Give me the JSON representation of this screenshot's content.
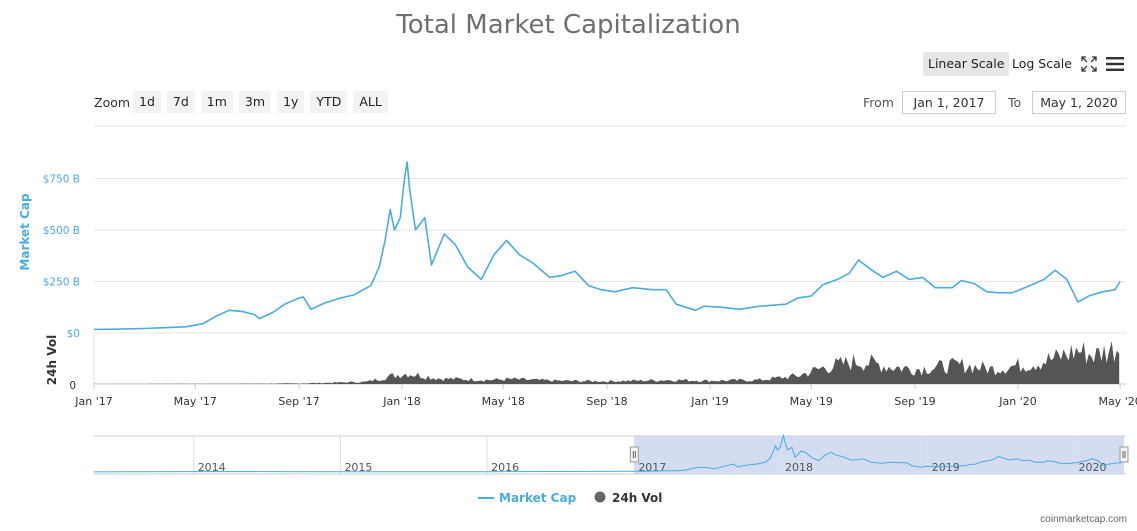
{
  "title": "Total Market Capitalization",
  "toolbar": {
    "linear_label": "Linear Scale",
    "log_label": "Log Scale",
    "fullscreen_icon": "fullscreen-icon",
    "menu_icon": "hamburger-menu-icon"
  },
  "zoom": {
    "label": "Zoom",
    "buttons": [
      "1d",
      "7d",
      "1m",
      "3m",
      "1y",
      "YTD",
      "ALL"
    ]
  },
  "range": {
    "from_label": "From",
    "from_value": "Jan 1, 2017",
    "to_label": "To",
    "to_value": "May 1, 2020"
  },
  "legend": {
    "market_cap": "Market Cap",
    "vol": "24h Vol"
  },
  "credit": "coinmarketcap.com",
  "colors": {
    "market_cap": "#4aace0",
    "volume": "#555555",
    "navigator_fill": "#ccd6f0"
  },
  "chart_data": {
    "type": "line",
    "ylabel": "Market Cap",
    "y2label": "24h Vol",
    "y_ticks": [
      "$0",
      "$250 B",
      "$500 B",
      "$750 B"
    ],
    "y2_ticks": [
      "0"
    ],
    "ylim": [
      0,
      950
    ],
    "x_tick_labels": [
      "Jan '17",
      "May '17",
      "Sep '17",
      "Jan '18",
      "May '18",
      "Sep '18",
      "Jan '19",
      "May '19",
      "Sep '19",
      "Jan '20",
      "May '20"
    ],
    "x_tick_dates": [
      "2017-01-01",
      "2017-05-01",
      "2017-09-01",
      "2018-01-01",
      "2018-05-01",
      "2018-09-01",
      "2019-01-01",
      "2019-05-01",
      "2019-09-01",
      "2020-01-01",
      "2020-05-01"
    ],
    "navigator_labels": [
      "2014",
      "2015",
      "2016",
      "2017",
      "2018",
      "2019",
      "2020"
    ],
    "series": [
      {
        "name": "Market Cap",
        "unit": "billion USD",
        "points": [
          [
            "2017-01-01",
            17
          ],
          [
            "2017-02-01",
            19
          ],
          [
            "2017-03-01",
            22
          ],
          [
            "2017-04-01",
            27
          ],
          [
            "2017-04-20",
            30
          ],
          [
            "2017-05-10",
            45
          ],
          [
            "2017-05-25",
            80
          ],
          [
            "2017-06-10",
            110
          ],
          [
            "2017-06-25",
            105
          ],
          [
            "2017-07-10",
            90
          ],
          [
            "2017-07-16",
            70
          ],
          [
            "2017-08-01",
            100
          ],
          [
            "2017-08-15",
            140
          ],
          [
            "2017-09-01",
            170
          ],
          [
            "2017-09-06",
            175
          ],
          [
            "2017-09-15",
            115
          ],
          [
            "2017-10-01",
            145
          ],
          [
            "2017-10-20",
            170
          ],
          [
            "2017-11-05",
            185
          ],
          [
            "2017-11-25",
            230
          ],
          [
            "2017-12-05",
            320
          ],
          [
            "2017-12-12",
            450
          ],
          [
            "2017-12-18",
            600
          ],
          [
            "2017-12-23",
            500
          ],
          [
            "2017-12-30",
            560
          ],
          [
            "2018-01-04",
            750
          ],
          [
            "2018-01-07",
            830
          ],
          [
            "2018-01-10",
            700
          ],
          [
            "2018-01-17",
            500
          ],
          [
            "2018-01-28",
            560
          ],
          [
            "2018-02-05",
            330
          ],
          [
            "2018-02-20",
            480
          ],
          [
            "2018-03-05",
            430
          ],
          [
            "2018-03-20",
            320
          ],
          [
            "2018-04-05",
            260
          ],
          [
            "2018-04-20",
            380
          ],
          [
            "2018-05-05",
            450
          ],
          [
            "2018-05-20",
            380
          ],
          [
            "2018-06-05",
            340
          ],
          [
            "2018-06-25",
            270
          ],
          [
            "2018-07-10",
            280
          ],
          [
            "2018-07-25",
            300
          ],
          [
            "2018-08-10",
            230
          ],
          [
            "2018-08-25",
            210
          ],
          [
            "2018-09-10",
            200
          ],
          [
            "2018-10-01",
            220
          ],
          [
            "2018-10-25",
            210
          ],
          [
            "2018-11-10",
            210
          ],
          [
            "2018-11-22",
            140
          ],
          [
            "2018-12-15",
            110
          ],
          [
            "2018-12-25",
            130
          ],
          [
            "2019-01-15",
            125
          ],
          [
            "2019-02-05",
            115
          ],
          [
            "2019-03-01",
            130
          ],
          [
            "2019-04-01",
            140
          ],
          [
            "2019-04-15",
            170
          ],
          [
            "2019-05-01",
            180
          ],
          [
            "2019-05-15",
            235
          ],
          [
            "2019-06-01",
            260
          ],
          [
            "2019-06-15",
            290
          ],
          [
            "2019-06-26",
            355
          ],
          [
            "2019-07-10",
            310
          ],
          [
            "2019-07-25",
            270
          ],
          [
            "2019-08-10",
            300
          ],
          [
            "2019-08-25",
            260
          ],
          [
            "2019-09-10",
            270
          ],
          [
            "2019-09-25",
            220
          ],
          [
            "2019-10-15",
            220
          ],
          [
            "2019-10-26",
            255
          ],
          [
            "2019-11-10",
            240
          ],
          [
            "2019-11-25",
            200
          ],
          [
            "2019-12-10",
            195
          ],
          [
            "2019-12-25",
            195
          ],
          [
            "2020-01-15",
            230
          ],
          [
            "2020-02-01",
            260
          ],
          [
            "2020-02-14",
            305
          ],
          [
            "2020-02-28",
            260
          ],
          [
            "2020-03-12",
            150
          ],
          [
            "2020-03-25",
            180
          ],
          [
            "2020-04-10",
            200
          ],
          [
            "2020-04-25",
            210
          ],
          [
            "2020-05-01",
            250
          ]
        ]
      },
      {
        "name": "24h Vol",
        "unit": "billion USD",
        "points": [
          [
            "2017-01-01",
            0.2
          ],
          [
            "2017-06-01",
            1
          ],
          [
            "2017-09-01",
            2
          ],
          [
            "2017-11-20",
            8
          ],
          [
            "2017-12-20",
            30
          ],
          [
            "2018-01-07",
            40
          ],
          [
            "2018-02-15",
            20
          ],
          [
            "2018-04-15",
            15
          ],
          [
            "2018-05-10",
            18
          ],
          [
            "2018-07-01",
            12
          ],
          [
            "2018-09-01",
            10
          ],
          [
            "2018-11-15",
            15
          ],
          [
            "2019-01-01",
            12
          ],
          [
            "2019-03-01",
            15
          ],
          [
            "2019-04-15",
            30
          ],
          [
            "2019-05-15",
            60
          ],
          [
            "2019-06-26",
            85
          ],
          [
            "2019-08-01",
            65
          ],
          [
            "2019-09-01",
            55
          ],
          [
            "2019-10-26",
            70
          ],
          [
            "2019-12-01",
            55
          ],
          [
            "2020-01-15",
            75
          ],
          [
            "2020-02-15",
            95
          ],
          [
            "2020-03-12",
            125
          ],
          [
            "2020-04-01",
            105
          ],
          [
            "2020-04-30",
            140
          ]
        ]
      }
    ]
  }
}
